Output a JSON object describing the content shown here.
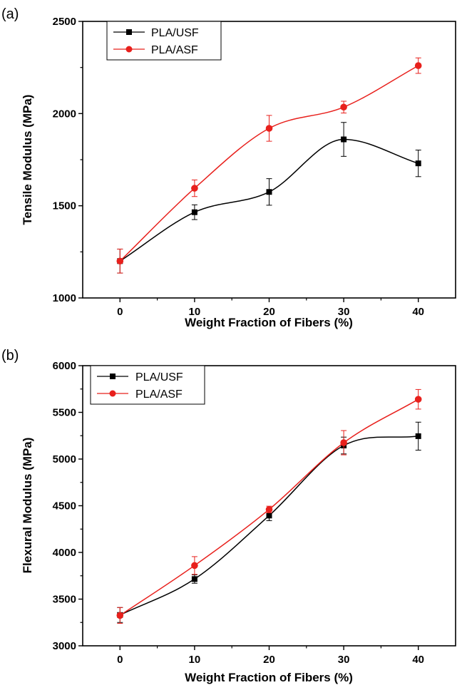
{
  "figure": {
    "panels": [
      {
        "label": "(a)"
      },
      {
        "label": "(b)"
      }
    ]
  },
  "chart_data": [
    {
      "type": "line",
      "panel": "(a)",
      "title": "",
      "xlabel": "Weight Fraction of Fibers (%)",
      "ylabel": "Tensile Modulus (MPa)",
      "x": [
        0,
        10,
        20,
        30,
        40
      ],
      "xticks": [
        0,
        10,
        20,
        30,
        40
      ],
      "yticks": [
        1000,
        1500,
        2000,
        2500
      ],
      "xlim": [
        -5,
        45
      ],
      "ylim": [
        1000,
        2500
      ],
      "grid": false,
      "legend_position": "top-left",
      "series": [
        {
          "name": "PLA/USF",
          "color": "#000000",
          "marker": "square",
          "values": [
            1200,
            1465,
            1575,
            1860,
            1730
          ],
          "errors": [
            65,
            40,
            72,
            92,
            72
          ]
        },
        {
          "name": "PLA/ASF",
          "color": "#e8201c",
          "marker": "circle",
          "values": [
            1200,
            1595,
            1920,
            2035,
            2260
          ],
          "errors": [
            65,
            45,
            70,
            32,
            42
          ]
        }
      ]
    },
    {
      "type": "line",
      "panel": "(b)",
      "title": "",
      "xlabel": "Weight Fraction of Fibers (%)",
      "ylabel": "Flexural Modulus (MPa)",
      "x": [
        0,
        10,
        20,
        30,
        40
      ],
      "xticks": [
        0,
        10,
        20,
        30,
        40
      ],
      "yticks": [
        3000,
        3500,
        4000,
        4500,
        5000,
        5500,
        6000
      ],
      "xlim": [
        -5,
        45
      ],
      "ylim": [
        3000,
        6000
      ],
      "grid": false,
      "legend_position": "top-left",
      "series": [
        {
          "name": "PLA/USF",
          "color": "#000000",
          "marker": "square",
          "values": [
            3330,
            3715,
            4395,
            5145,
            5245
          ],
          "errors": [
            80,
            45,
            55,
            90,
            150
          ]
        },
        {
          "name": "PLA/ASF",
          "color": "#e8201c",
          "marker": "circle",
          "values": [
            3325,
            3860,
            4460,
            5175,
            5640
          ],
          "errors": [
            85,
            95,
            35,
            130,
            105
          ]
        }
      ]
    }
  ]
}
